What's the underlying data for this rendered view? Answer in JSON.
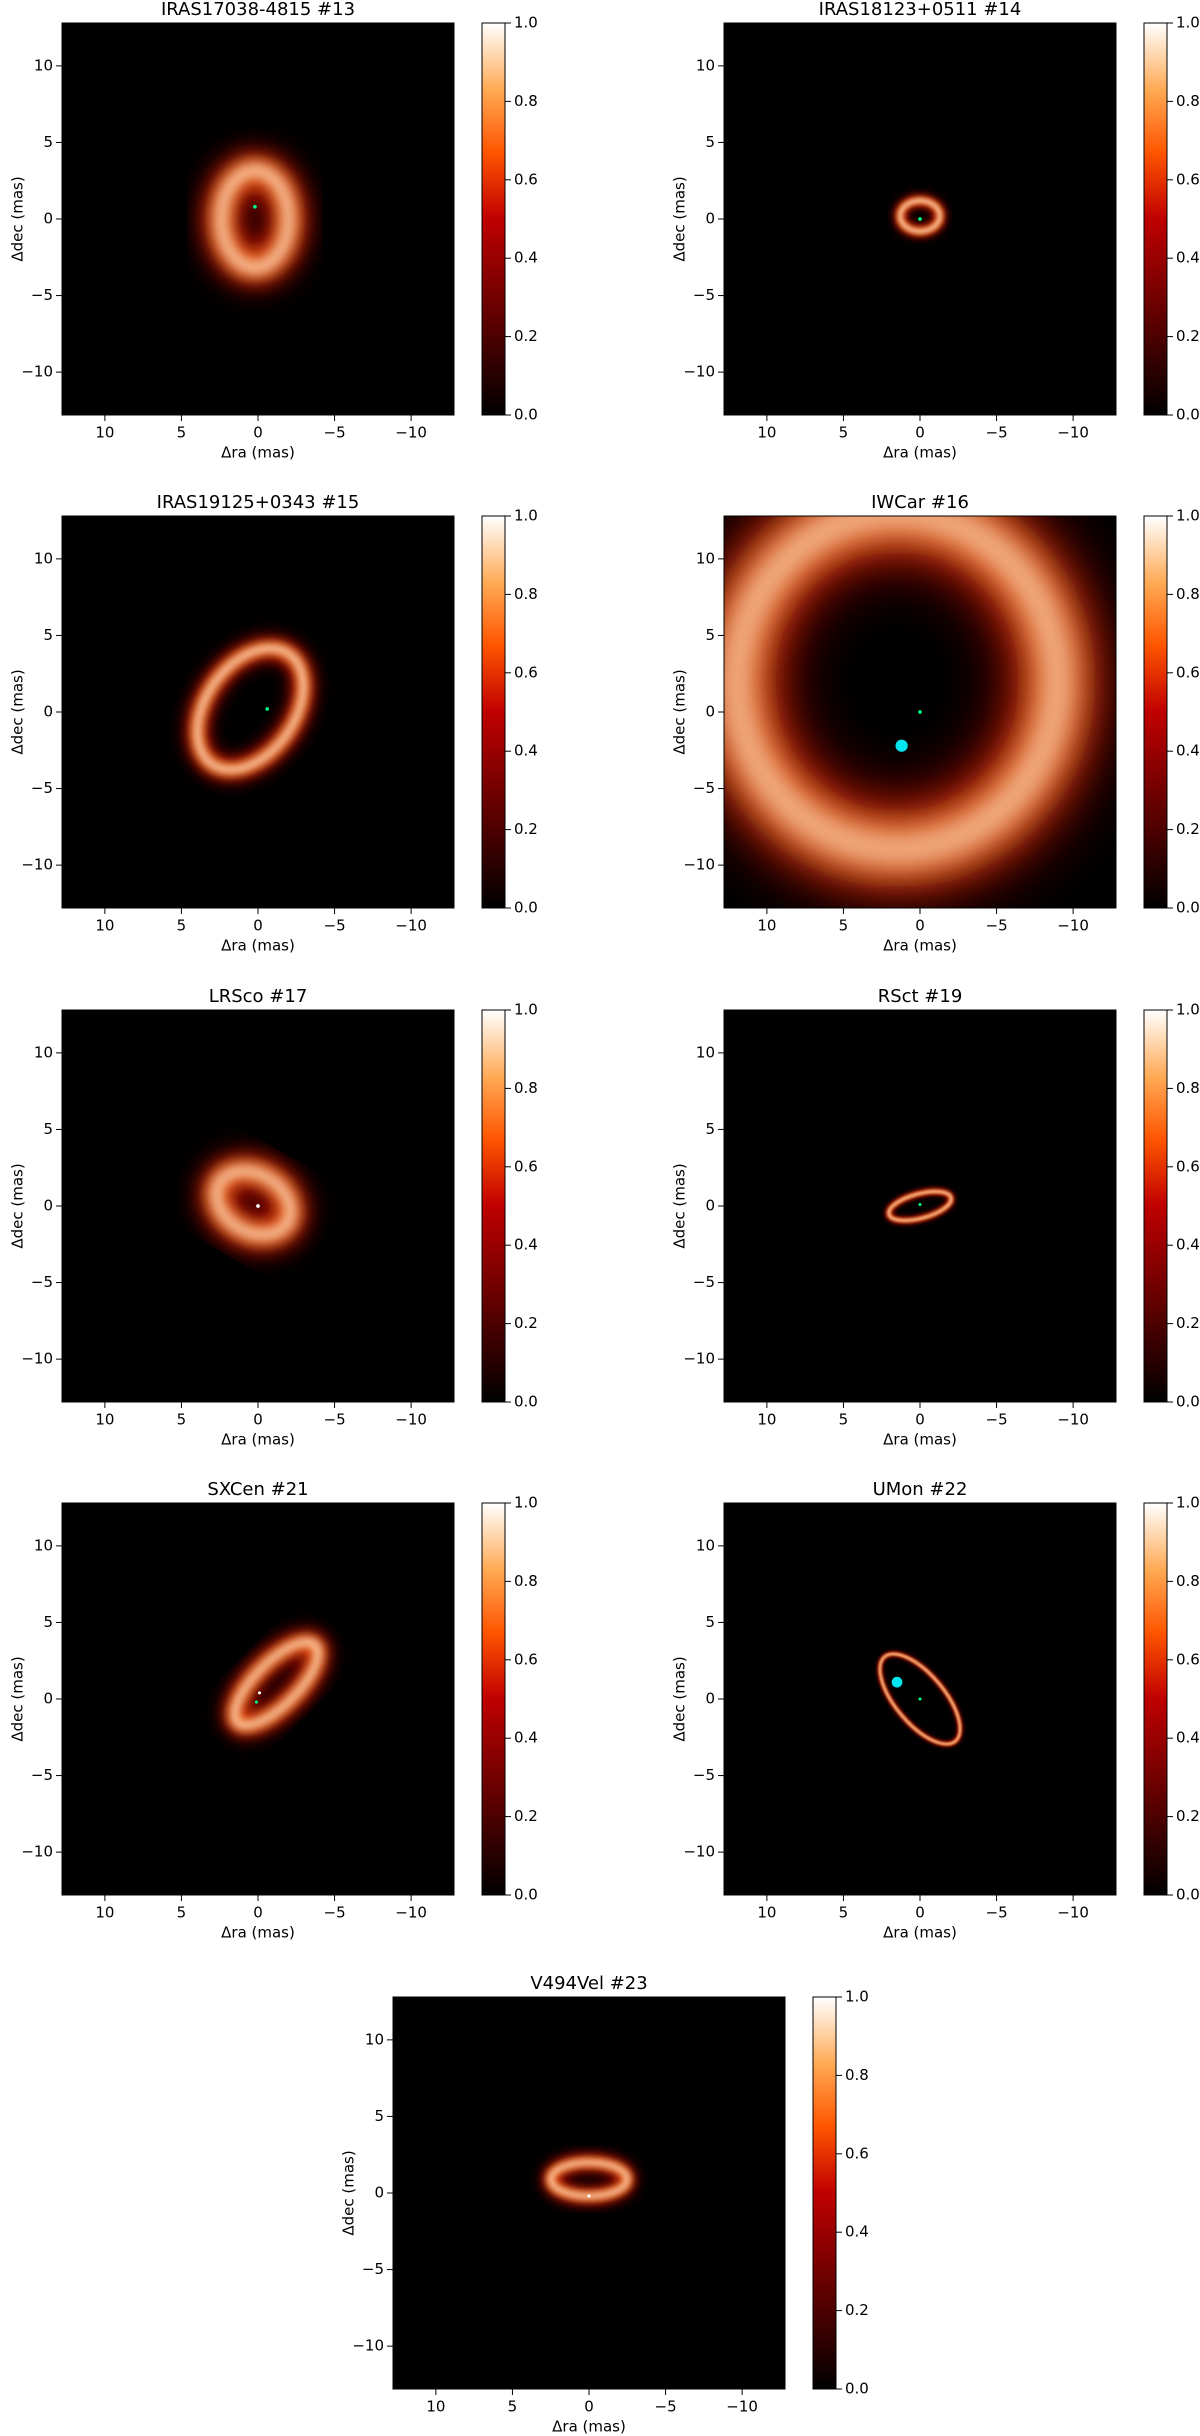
{
  "chart_data": [
    {
      "type": "image",
      "title": "IRAS17038-4815 #13",
      "xlabel": "Δra (mas)",
      "ylabel": "Δdec (mas)",
      "xlim": [
        12.8,
        -12.8
      ],
      "ylim": [
        -12.8,
        12.8
      ],
      "xticks": [
        10,
        5,
        0,
        {
          "value": -5,
          "label": "−5"
        },
        {
          "value": -10,
          "label": "−10"
        }
      ],
      "yticks": [
        {
          "value": -10,
          "label": "−10"
        },
        {
          "value": -5,
          "label": "−5"
        },
        0,
        5,
        10
      ],
      "clim": [
        0,
        1
      ],
      "cticks": [
        {
          "value": 0,
          "label": "0.0"
        },
        {
          "value": 0.2,
          "label": "0.2"
        },
        {
          "value": 0.4,
          "label": "0.4"
        },
        {
          "value": 0.6,
          "label": "0.6"
        },
        {
          "value": 0.8,
          "label": "0.8"
        },
        {
          "value": 1,
          "label": "1.0"
        }
      ],
      "rings": [
        {
          "x": 0.2,
          "y": 0,
          "rx": 2.2,
          "ry": 3.2,
          "angle": 0,
          "width": 2.2
        }
      ],
      "markers": [
        {
          "x": 0.2,
          "y": 0.8,
          "r": 0.12,
          "color": "#00ff80"
        }
      ]
    },
    {
      "type": "image",
      "title": "IRAS18123+0511 #14",
      "xlabel": "Δra (mas)",
      "ylabel": "Δdec (mas)",
      "xlim": [
        12.8,
        -12.8
      ],
      "ylim": [
        -12.8,
        12.8
      ],
      "xticks": [
        10,
        5,
        0,
        {
          "value": -5,
          "label": "−5"
        },
        {
          "value": -10,
          "label": "−10"
        }
      ],
      "yticks": [
        {
          "value": -10,
          "label": "−10"
        },
        {
          "value": -5,
          "label": "−5"
        },
        0,
        5,
        10
      ],
      "clim": [
        0,
        1
      ],
      "cticks": [
        {
          "value": 0,
          "label": "0.0"
        },
        {
          "value": 0.2,
          "label": "0.2"
        },
        {
          "value": 0.4,
          "label": "0.4"
        },
        {
          "value": 0.6,
          "label": "0.6"
        },
        {
          "value": 0.8,
          "label": "0.8"
        },
        {
          "value": 1,
          "label": "1.0"
        }
      ],
      "rings": [
        {
          "x": 0,
          "y": 0.2,
          "rx": 1.3,
          "ry": 1.0,
          "angle": 0,
          "width": 0.7
        }
      ],
      "markers": [
        {
          "x": 0,
          "y": 0,
          "r": 0.12,
          "color": "#00ff80"
        }
      ]
    },
    {
      "type": "image",
      "title": "IRAS19125+0343 #15",
      "xlabel": "Δra (mas)",
      "ylabel": "Δdec (mas)",
      "xlim": [
        12.8,
        -12.8
      ],
      "ylim": [
        -12.8,
        12.8
      ],
      "xticks": [
        10,
        5,
        0,
        {
          "value": -5,
          "label": "−5"
        },
        {
          "value": -10,
          "label": "−10"
        }
      ],
      "yticks": [
        {
          "value": -10,
          "label": "−10"
        },
        {
          "value": -5,
          "label": "−5"
        },
        0,
        5,
        10
      ],
      "clim": [
        0,
        1
      ],
      "cticks": [
        {
          "value": 0,
          "label": "0.0"
        },
        {
          "value": 0.2,
          "label": "0.2"
        },
        {
          "value": 0.4,
          "label": "0.4"
        },
        {
          "value": 0.6,
          "label": "0.6"
        },
        {
          "value": 0.8,
          "label": "0.8"
        },
        {
          "value": 1,
          "label": "1.0"
        }
      ],
      "rings": [
        {
          "x": 0.5,
          "y": 0.2,
          "rx": 4.4,
          "ry": 2.9,
          "angle": 55,
          "width": 1.3
        }
      ],
      "markers": [
        {
          "x": -0.6,
          "y": 0.2,
          "r": 0.12,
          "color": "#00ff80"
        }
      ]
    },
    {
      "type": "image",
      "title": "IWCar #16",
      "xlabel": "Δra (mas)",
      "ylabel": "Δdec (mas)",
      "xlim": [
        12.8,
        -12.8
      ],
      "ylim": [
        -12.8,
        12.8
      ],
      "xticks": [
        10,
        5,
        0,
        {
          "value": -5,
          "label": "−5"
        },
        {
          "value": -10,
          "label": "−10"
        }
      ],
      "yticks": [
        {
          "value": -10,
          "label": "−10"
        },
        {
          "value": -5,
          "label": "−5"
        },
        0,
        5,
        10
      ],
      "clim": [
        0,
        1
      ],
      "cticks": [
        {
          "value": 0,
          "label": "0.0"
        },
        {
          "value": 0.2,
          "label": "0.2"
        },
        {
          "value": 0.4,
          "label": "0.4"
        },
        {
          "value": 0.6,
          "label": "0.6"
        },
        {
          "value": 0.8,
          "label": "0.8"
        },
        {
          "value": 1,
          "label": "1.0"
        }
      ],
      "rings": [
        {
          "x": 1.5,
          "y": 2,
          "rx": 10.5,
          "ry": 11,
          "angle": 0,
          "width": 5
        }
      ],
      "markers": [
        {
          "x": 0,
          "y": 0,
          "r": 0.12,
          "color": "#00ff80"
        },
        {
          "x": 1.2,
          "y": -2.2,
          "r": 0.4,
          "color": "#00e5ee"
        }
      ]
    },
    {
      "type": "image",
      "title": "LRSco #17",
      "xlabel": "Δra (mas)",
      "ylabel": "Δdec (mas)",
      "xlim": [
        12.8,
        -12.8
      ],
      "ylim": [
        -12.8,
        12.8
      ],
      "xticks": [
        10,
        5,
        0,
        {
          "value": -5,
          "label": "−5"
        },
        {
          "value": -10,
          "label": "−10"
        }
      ],
      "yticks": [
        {
          "value": -10,
          "label": "−10"
        },
        {
          "value": -5,
          "label": "−5"
        },
        0,
        5,
        10
      ],
      "clim": [
        0,
        1
      ],
      "cticks": [
        {
          "value": 0,
          "label": "0.0"
        },
        {
          "value": 0.2,
          "label": "0.2"
        },
        {
          "value": 0.4,
          "label": "0.4"
        },
        {
          "value": 0.6,
          "label": "0.6"
        },
        {
          "value": 0.8,
          "label": "0.8"
        },
        {
          "value": 1,
          "label": "1.0"
        }
      ],
      "rings": [
        {
          "x": 0.3,
          "y": 0.2,
          "rx": 2.6,
          "ry": 1.9,
          "angle": -30,
          "width": 2
        }
      ],
      "markers": [
        {
          "x": 0,
          "y": 0,
          "r": 0.12,
          "color": "#ffffff"
        }
      ]
    },
    {
      "type": "image",
      "title": "RSct #19",
      "xlabel": "Δra (mas)",
      "ylabel": "Δdec (mas)",
      "xlim": [
        12.8,
        -12.8
      ],
      "ylim": [
        -12.8,
        12.8
      ],
      "xticks": [
        10,
        5,
        0,
        {
          "value": -5,
          "label": "−5"
        },
        {
          "value": -10,
          "label": "−10"
        }
      ],
      "yticks": [
        {
          "value": -10,
          "label": "−10"
        },
        {
          "value": -5,
          "label": "−5"
        },
        0,
        5,
        10
      ],
      "clim": [
        0,
        1
      ],
      "cticks": [
        {
          "value": 0,
          "label": "0.0"
        },
        {
          "value": 0.2,
          "label": "0.2"
        },
        {
          "value": 0.4,
          "label": "0.4"
        },
        {
          "value": 0.6,
          "label": "0.6"
        },
        {
          "value": 0.8,
          "label": "0.8"
        },
        {
          "value": 1,
          "label": "1.0"
        }
      ],
      "rings": [
        {
          "x": 0,
          "y": 0,
          "rx": 2.1,
          "ry": 0.8,
          "angle": 15,
          "width": 0.4
        }
      ],
      "markers": [
        {
          "x": 0,
          "y": 0.1,
          "r": 0.1,
          "color": "#00ff80"
        }
      ]
    },
    {
      "type": "image",
      "title": "SXCen #21",
      "xlabel": "Δra (mas)",
      "ylabel": "Δdec (mas)",
      "xlim": [
        12.8,
        -12.8
      ],
      "ylim": [
        -12.8,
        12.8
      ],
      "xticks": [
        10,
        5,
        0,
        {
          "value": -5,
          "label": "−5"
        },
        {
          "value": -10,
          "label": "−10"
        }
      ],
      "yticks": [
        {
          "value": -10,
          "label": "−10"
        },
        {
          "value": -5,
          "label": "−5"
        },
        0,
        5,
        10
      ],
      "clim": [
        0,
        1
      ],
      "cticks": [
        {
          "value": 0,
          "label": "0.0"
        },
        {
          "value": 0.2,
          "label": "0.2"
        },
        {
          "value": 0.4,
          "label": "0.4"
        },
        {
          "value": 0.6,
          "label": "0.6"
        },
        {
          "value": 0.8,
          "label": "0.8"
        },
        {
          "value": 1,
          "label": "1.0"
        }
      ],
      "rings": [
        {
          "x": -1.2,
          "y": 1,
          "rx": 3.6,
          "ry": 1.4,
          "angle": 45,
          "width": 1.4
        }
      ],
      "markers": [
        {
          "x": -0.1,
          "y": 0.4,
          "r": 0.1,
          "color": "#ffffff"
        },
        {
          "x": 0.1,
          "y": -0.2,
          "r": 0.1,
          "color": "#00ff80"
        }
      ]
    },
    {
      "type": "image",
      "title": "UMon #22",
      "xlabel": "Δra (mas)",
      "ylabel": "Δdec (mas)",
      "xlim": [
        12.8,
        -12.8
      ],
      "ylim": [
        -12.8,
        12.8
      ],
      "xticks": [
        10,
        5,
        0,
        {
          "value": -5,
          "label": "−5"
        },
        {
          "value": -10,
          "label": "−10"
        }
      ],
      "yticks": [
        {
          "value": -10,
          "label": "−10"
        },
        {
          "value": -5,
          "label": "−5"
        },
        0,
        5,
        10
      ],
      "clim": [
        0,
        1
      ],
      "cticks": [
        {
          "value": 0,
          "label": "0.0"
        },
        {
          "value": 0.2,
          "label": "0.2"
        },
        {
          "value": 0.4,
          "label": "0.4"
        },
        {
          "value": 0.6,
          "label": "0.6"
        },
        {
          "value": 0.8,
          "label": "0.8"
        },
        {
          "value": 1,
          "label": "1.0"
        }
      ],
      "rings": [
        {
          "x": 0,
          "y": 0,
          "rx": 3.6,
          "ry": 1.6,
          "angle": -50,
          "width": 0.3
        }
      ],
      "markers": [
        {
          "x": 0,
          "y": 0,
          "r": 0.1,
          "color": "#00ff80"
        },
        {
          "x": 1.5,
          "y": 1.1,
          "r": 0.35,
          "color": "#00e5ee"
        }
      ]
    },
    {
      "type": "image",
      "title": "V494Vel #23",
      "xlabel": "Δra (mas)",
      "ylabel": "Δdec (mas)",
      "xlim": [
        12.8,
        -12.8
      ],
      "ylim": [
        -12.8,
        12.8
      ],
      "xticks": [
        10,
        5,
        0,
        {
          "value": -5,
          "label": "−5"
        },
        {
          "value": -10,
          "label": "−10"
        }
      ],
      "yticks": [
        {
          "value": -10,
          "label": "−10"
        },
        {
          "value": -5,
          "label": "−5"
        },
        0,
        5,
        10
      ],
      "clim": [
        0,
        1
      ],
      "cticks": [
        {
          "value": 0,
          "label": "0.0"
        },
        {
          "value": 0.2,
          "label": "0.2"
        },
        {
          "value": 0.4,
          "label": "0.4"
        },
        {
          "value": 0.6,
          "label": "0.6"
        },
        {
          "value": 0.8,
          "label": "0.8"
        },
        {
          "value": 1,
          "label": "1.0"
        }
      ],
      "rings": [
        {
          "x": 0,
          "y": 0.9,
          "rx": 2.5,
          "ry": 1.1,
          "angle": 0,
          "width": 1
        }
      ],
      "markers": [
        {
          "x": 0,
          "y": -0.2,
          "r": 0.1,
          "color": "#ffffff"
        }
      ]
    }
  ]
}
